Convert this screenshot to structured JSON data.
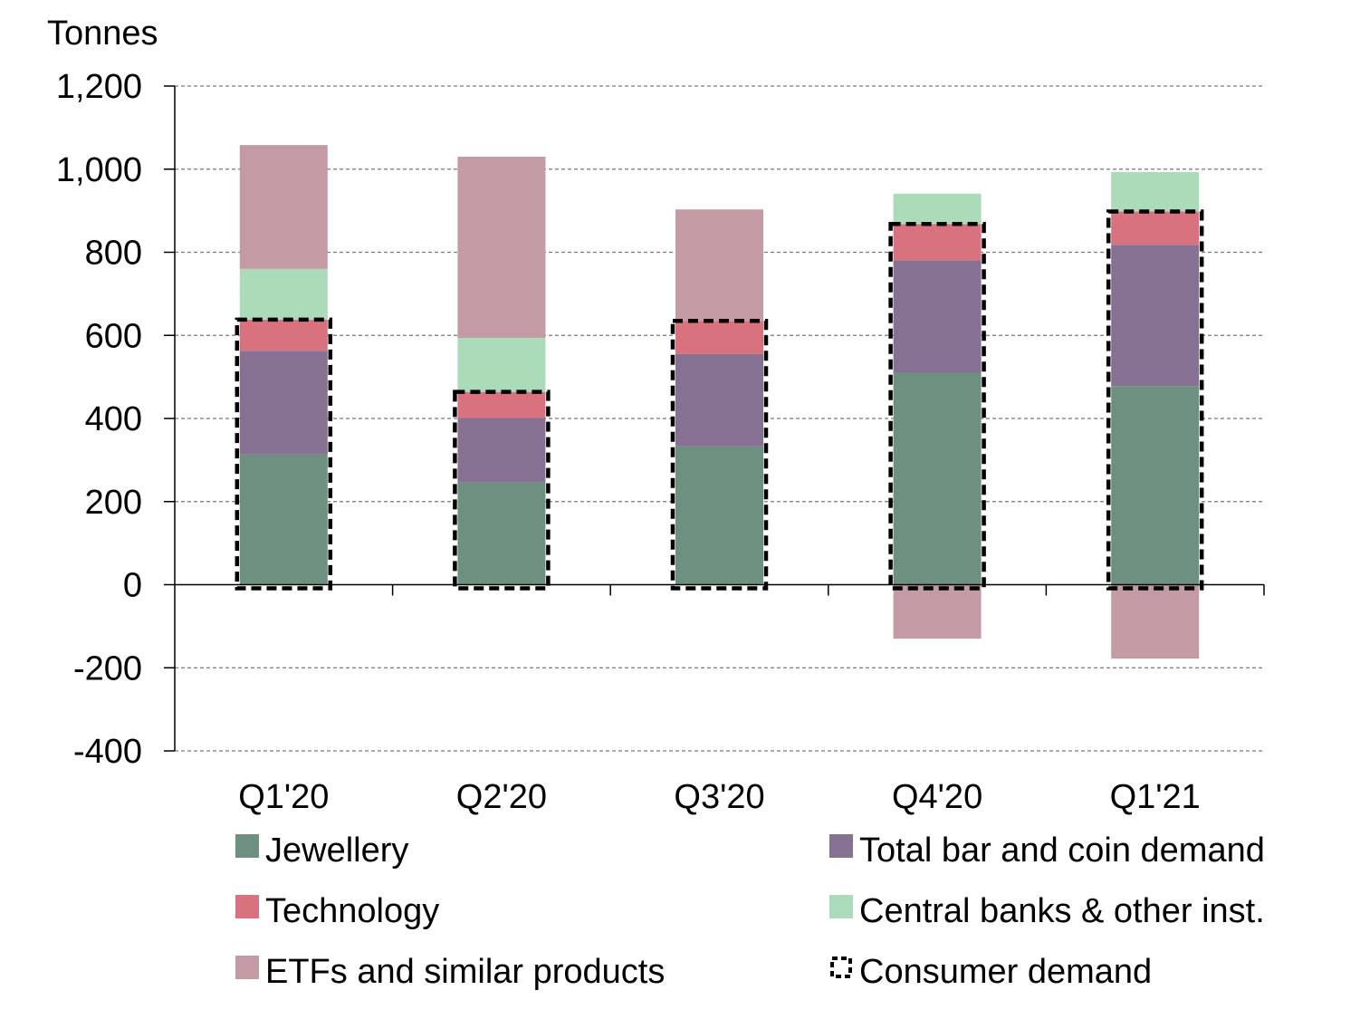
{
  "chart_data": {
    "type": "bar",
    "stacked": true,
    "y_unit_label": "Tonnes",
    "categories": [
      "Q1'20",
      "Q2'20",
      "Q3'20",
      "Q4'20",
      "Q1'21"
    ],
    "ylim": [
      -400,
      1200
    ],
    "y_ticks": [
      "1,200",
      "1,000",
      "800",
      "600",
      "400",
      "200",
      "0",
      "-200",
      "-400"
    ],
    "y_tick_values": [
      1200,
      1000,
      800,
      600,
      400,
      200,
      0,
      -200,
      -400
    ],
    "grid": true,
    "series": [
      {
        "name": "Jewellery",
        "color": "#6e9080",
        "values": [
          313,
          246,
          333,
          510,
          478
        ]
      },
      {
        "name": "Total bar and coin demand",
        "color": "#877193",
        "values": [
          250,
          155,
          222,
          271,
          340
        ]
      },
      {
        "name": "Technology",
        "color": "#d9727f",
        "values": [
          75,
          63,
          80,
          87,
          80
        ]
      },
      {
        "name": "Central banks & other inst.",
        "color": "#acdbb9",
        "values": [
          122,
          130,
          0,
          73,
          95
        ]
      },
      {
        "name": "ETFs and similar products",
        "color": "#c49aa5",
        "values": [
          298,
          436,
          268,
          -130,
          -178
        ]
      }
    ],
    "consumer_demand": {
      "name": "Consumer demand",
      "values": [
        638,
        464,
        635,
        868,
        898
      ]
    },
    "legend": {
      "position": "bottom",
      "items": [
        {
          "label": "Jewellery",
          "color": "#6e9080",
          "kind": "fill"
        },
        {
          "label": "Total bar and coin demand",
          "color": "#877193",
          "kind": "fill"
        },
        {
          "label": "Technology",
          "color": "#d9727f",
          "kind": "fill"
        },
        {
          "label": "Central banks & other inst.",
          "color": "#acdbb9",
          "kind": "fill"
        },
        {
          "label": "ETFs and similar products",
          "color": "#c49aa5",
          "kind": "fill"
        },
        {
          "label": "Consumer demand",
          "color": "#000000",
          "kind": "dashed"
        }
      ]
    }
  }
}
